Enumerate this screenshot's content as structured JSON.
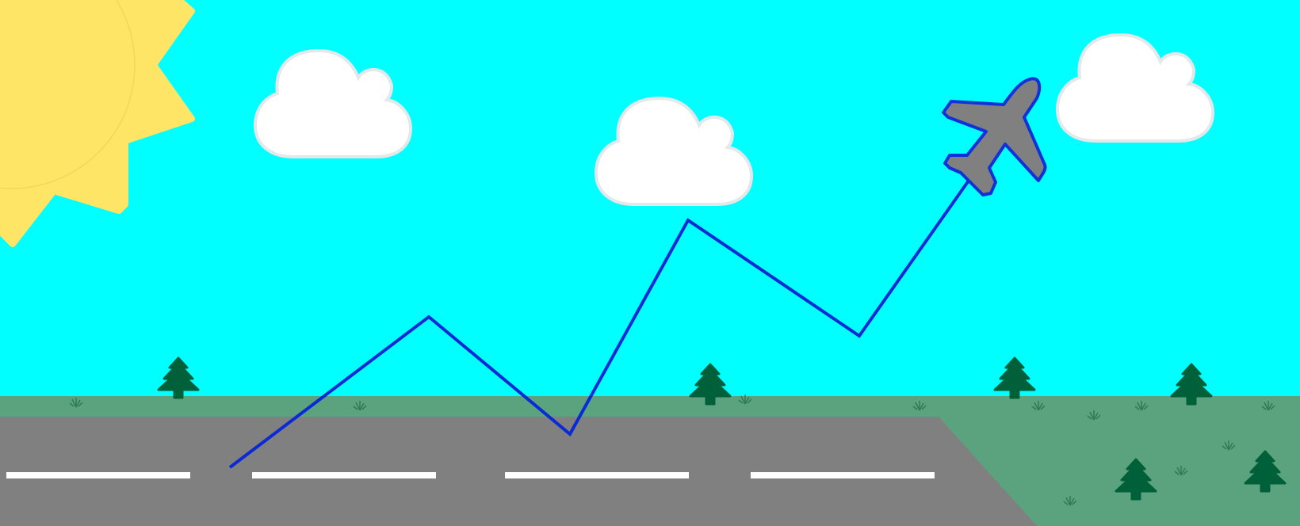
{
  "scene": {
    "colors": {
      "sky": "#00FFFF",
      "grass": "#5BA27F",
      "runway": "#808080",
      "runway_stripe": "#FFFFFF",
      "sun": "#FFE566",
      "sun_outline": "#F3D65A",
      "cloud_fill": "#FFFFFF",
      "cloud_outline": "#E3E8EA",
      "tree": "#00603A",
      "grass_tuft": "#2E7A58",
      "flight_path": "#0A2AD6",
      "plane_fill": "#808080",
      "plane_outline": "#1030D8"
    },
    "elements": {
      "sun": "sun-icon",
      "cloud": "cloud-icon",
      "tree": "pine-tree-icon",
      "airplane": "airplane-icon",
      "grass": "grass-tuft-icon"
    },
    "flight_path_points": 7
  }
}
